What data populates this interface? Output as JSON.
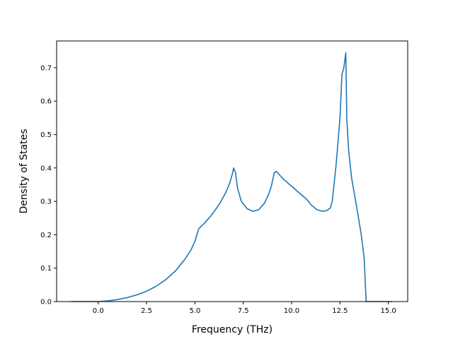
{
  "chart_data": {
    "type": "line",
    "xlabel": "Frequency (THz)",
    "ylabel": "Density of States",
    "xlim": [
      -2.15,
      16.0
    ],
    "ylim": [
      0,
      0.78
    ],
    "xticks": [
      0.0,
      2.5,
      5.0,
      7.5,
      10.0,
      12.5,
      15.0
    ],
    "xtick_labels": [
      "0.0",
      "2.5",
      "5.0",
      "7.5",
      "10.0",
      "12.5",
      "15.0"
    ],
    "yticks": [
      0.0,
      0.1,
      0.2,
      0.3,
      0.4,
      0.5,
      0.6,
      0.7
    ],
    "ytick_labels": [
      "0.0",
      "0.1",
      "0.2",
      "0.3",
      "0.4",
      "0.5",
      "0.6",
      "0.7"
    ],
    "grid": false,
    "colors": {
      "series": "#1f77b4"
    },
    "series": [
      {
        "x": [
          -1.4,
          0.0,
          0.5,
          1.0,
          1.5,
          2.0,
          2.5,
          3.0,
          3.5,
          4.0,
          4.5,
          4.8,
          5.0,
          5.1,
          5.2,
          5.3,
          5.5,
          5.8,
          6.0,
          6.3,
          6.6,
          6.8,
          6.95,
          7.0,
          7.1,
          7.2,
          7.4,
          7.7,
          8.0,
          8.3,
          8.6,
          8.8,
          8.95,
          9.1,
          9.2,
          9.6,
          10.0,
          10.5,
          10.8,
          11.0,
          11.3,
          11.6,
          11.8,
          12.0,
          12.1,
          12.3,
          12.5,
          12.6,
          12.7,
          12.8,
          12.85,
          12.95,
          13.1,
          13.4,
          13.6,
          13.75,
          13.85,
          14.0,
          15.0,
          15.2
        ],
        "y": [
          0.0,
          0.0,
          0.002,
          0.006,
          0.012,
          0.02,
          0.031,
          0.046,
          0.066,
          0.092,
          0.128,
          0.155,
          0.18,
          0.2,
          0.218,
          0.224,
          0.235,
          0.255,
          0.27,
          0.295,
          0.327,
          0.355,
          0.385,
          0.4,
          0.385,
          0.34,
          0.3,
          0.278,
          0.27,
          0.275,
          0.295,
          0.32,
          0.345,
          0.385,
          0.39,
          0.365,
          0.345,
          0.32,
          0.305,
          0.29,
          0.275,
          0.27,
          0.272,
          0.28,
          0.3,
          0.41,
          0.55,
          0.68,
          0.7,
          0.745,
          0.55,
          0.45,
          0.37,
          0.27,
          0.2,
          0.13,
          0.0,
          0.0,
          0.0,
          0.0
        ]
      }
    ]
  }
}
